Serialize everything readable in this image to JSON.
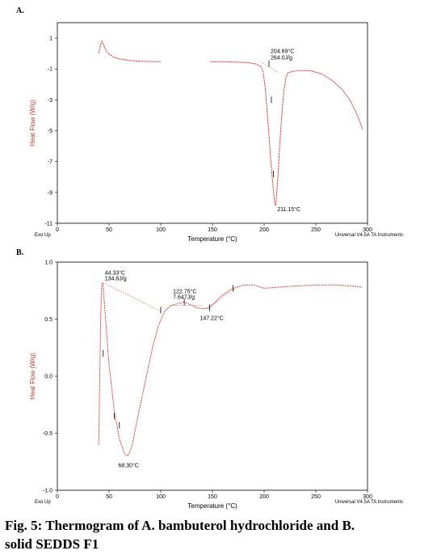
{
  "caption": {
    "line1": "Fig. 5: Thermogram of A. bambuterol hydrochloride and B.",
    "line2": "solid SEDDS F1"
  },
  "chart_data": [
    {
      "panel": "A.",
      "type": "line",
      "xlabel": "Temperature (°C)",
      "ylabel": "Heat Flow (W/g)",
      "xlim": [
        0,
        300
      ],
      "ylim": [
        -11,
        2
      ],
      "xticks": [
        0,
        50,
        100,
        150,
        200,
        250,
        300
      ],
      "yticks": [
        1,
        -1,
        -3,
        -5,
        -7,
        -9,
        -11
      ],
      "exo_label": "Exo Up",
      "instrument_label": "Universal V4.5A TA Instruments",
      "curve_color": "#d9534f",
      "series": [
        {
          "values": [
            [
              40,
              0.0
            ],
            [
              41,
              0.3
            ],
            [
              42,
              0.65
            ],
            [
              43,
              0.8
            ],
            [
              44,
              0.72
            ],
            [
              45,
              0.5
            ],
            [
              47,
              0.2
            ],
            [
              50,
              -0.05
            ],
            [
              55,
              -0.25
            ],
            [
              60,
              -0.35
            ],
            [
              70,
              -0.45
            ],
            [
              80,
              -0.5
            ],
            [
              90,
              -0.52
            ],
            [
              100,
              -0.53
            ]
          ]
        },
        {
          "values": [
            [
              148,
              -0.53
            ],
            [
              160,
              -0.53
            ],
            [
              175,
              -0.56
            ],
            [
              185,
              -0.6
            ],
            [
              192,
              -0.68
            ],
            [
              197,
              -0.85
            ],
            [
              199,
              -1.2
            ],
            [
              201,
              -2.2
            ],
            [
              203,
              -3.8
            ],
            [
              205,
              -5.6
            ],
            [
              207,
              -7.4
            ],
            [
              209,
              -8.9
            ],
            [
              210,
              -9.6
            ],
            [
              211,
              -9.85
            ],
            [
              211.5,
              -9.7
            ],
            [
              212,
              -9.2
            ],
            [
              213.5,
              -7.8
            ],
            [
              215,
              -6.0
            ],
            [
              217,
              -4.0
            ],
            [
              219,
              -2.5
            ],
            [
              221,
              -1.6
            ],
            [
              223,
              -1.25
            ],
            [
              228,
              -1.15
            ],
            [
              235,
              -1.1
            ],
            [
              245,
              -1.12
            ],
            [
              255,
              -1.3
            ],
            [
              265,
              -1.7
            ],
            [
              275,
              -2.3
            ],
            [
              283,
              -3.0
            ],
            [
              288,
              -3.7
            ],
            [
              292,
              -4.3
            ],
            [
              295,
              -4.9
            ]
          ]
        }
      ],
      "annotations": [
        {
          "text": "204.69°C",
          "x": 204.69,
          "y": -0.65
        },
        {
          "text": "264.0J/g",
          "x": 204.69,
          "y": -0.65
        },
        {
          "text": "211.15°C",
          "x": 211.15,
          "y": -9.85
        }
      ]
    },
    {
      "panel": "B.",
      "type": "line",
      "xlabel": "Temperature (°C)",
      "ylabel": "Heat Flow (W/g)",
      "xlim": [
        0,
        300
      ],
      "ylim": [
        -1.0,
        1.0
      ],
      "xticks": [
        0,
        50,
        100,
        150,
        200,
        250,
        300
      ],
      "yticks": [
        1.0,
        0.5,
        0.0,
        -0.5,
        -1.0
      ],
      "yticklabels": [
        "1.0",
        "0.5",
        "0.0",
        "-0.5",
        "-1.0"
      ],
      "exo_label": "Exo Up",
      "instrument_label": "Universal V4.5A TA Instruments",
      "curve_color": "#d9534f",
      "series": [
        {
          "values": [
            [
              40,
              -0.6
            ],
            [
              41,
              0.0
            ],
            [
              42,
              0.55
            ],
            [
              43,
              0.8
            ],
            [
              44,
              0.82
            ],
            [
              45,
              0.7
            ],
            [
              47,
              0.45
            ],
            [
              50,
              0.1
            ],
            [
              55,
              -0.3
            ],
            [
              60,
              -0.55
            ],
            [
              65,
              -0.68
            ],
            [
              68.3,
              -0.7
            ],
            [
              72,
              -0.62
            ],
            [
              78,
              -0.35
            ],
            [
              85,
              -0.05
            ],
            [
              92,
              0.25
            ],
            [
              98,
              0.45
            ],
            [
              104,
              0.57
            ],
            [
              110,
              0.62
            ],
            [
              118,
              0.64
            ],
            [
              122.75,
              0.65
            ],
            [
              128,
              0.63
            ],
            [
              135,
              0.6
            ],
            [
              142,
              0.59
            ],
            [
              147.22,
              0.6
            ],
            [
              152,
              0.64
            ],
            [
              158,
              0.7
            ],
            [
              168,
              0.76
            ],
            [
              180,
              0.8
            ],
            [
              190,
              0.8
            ],
            [
              200,
              0.77
            ],
            [
              215,
              0.78
            ],
            [
              230,
              0.79
            ],
            [
              250,
              0.8
            ],
            [
              270,
              0.8
            ],
            [
              285,
              0.79
            ],
            [
              295,
              0.78
            ]
          ]
        }
      ],
      "annotations": [
        {
          "text": "44.33°C",
          "x": 44.33,
          "y": 0.82
        },
        {
          "text": "134.8J/g",
          "x": 44.33,
          "y": 0.82
        },
        {
          "text": "122.75°C",
          "x": 122.75,
          "y": 0.65
        },
        {
          "text": "7.647J/g",
          "x": 122.75,
          "y": 0.65
        },
        {
          "text": "147.22°C",
          "x": 147.22,
          "y": 0.6
        },
        {
          "text": "68.30°C",
          "x": 68.3,
          "y": -0.7
        }
      ]
    }
  ]
}
